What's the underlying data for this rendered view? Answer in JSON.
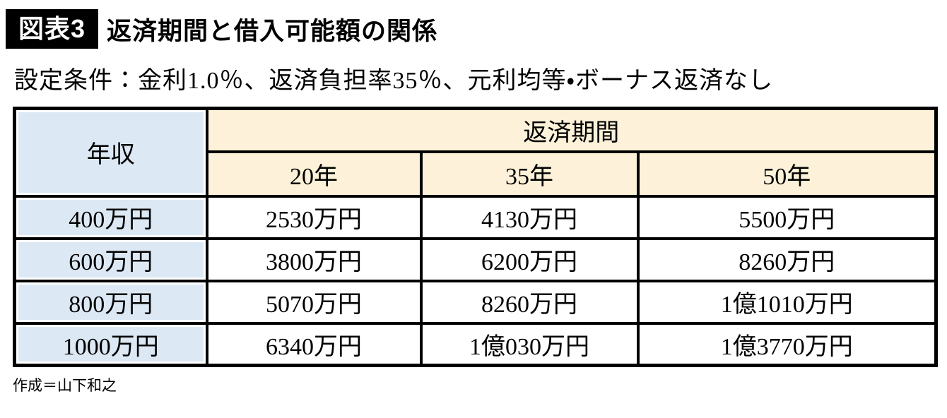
{
  "chart_data": {
    "type": "table",
    "figure_label": "図表3",
    "title": "返済期間と借入可能額の関係",
    "subtitle": "設定条件：金利1.0％、返済負担率35％、元利均等・ボーナス返済なし",
    "corner_header": "年収",
    "group_header": "返済期間",
    "column_headers": [
      "20年",
      "35年",
      "50年"
    ],
    "rows": [
      {
        "income": "400万円",
        "values": [
          "2530万円",
          "4130万円",
          "5500万円"
        ]
      },
      {
        "income": "600万円",
        "values": [
          "3800万円",
          "6200万円",
          "8260万円"
        ]
      },
      {
        "income": "800万円",
        "values": [
          "5070万円",
          "8260万円",
          "1億1010万円"
        ]
      },
      {
        "income": "1000万円",
        "values": [
          "6340万円",
          "1億030万円",
          "1億3770万円"
        ]
      }
    ],
    "credit": "作成＝山下和之"
  },
  "colors": {
    "period_header_fill": "#fdf2d9",
    "income_column_fill": "#dce8f4",
    "table_border": "#000000",
    "badge_background": "#000000",
    "badge_text": "#ffffff"
  }
}
